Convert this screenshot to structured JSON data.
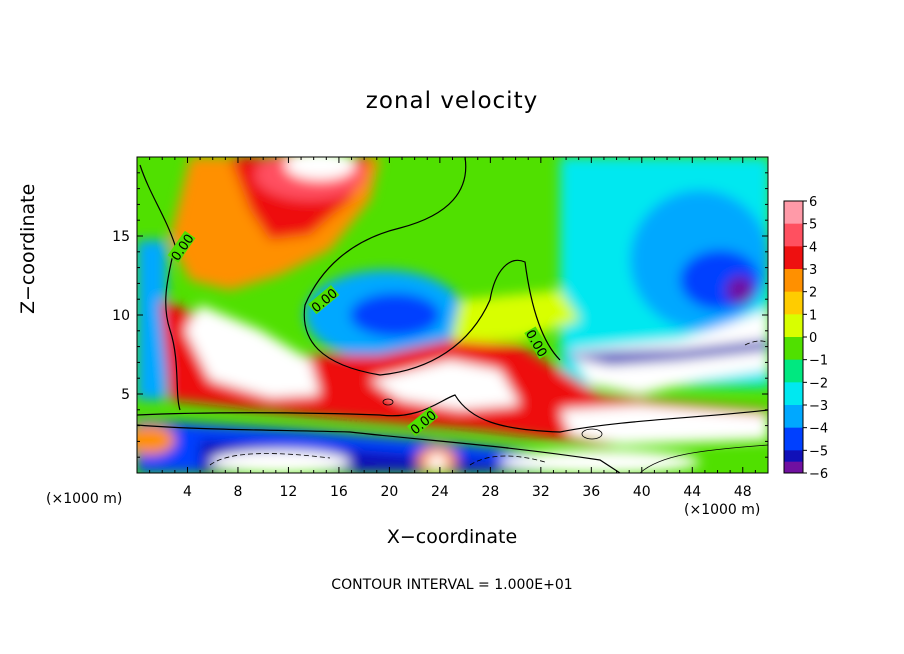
{
  "chart_data": {
    "type": "heatmap",
    "title": "zonal velocity",
    "xlabel": "X−coordinate",
    "ylabel": "Z−coordinate",
    "x_unit_left": "(×1000 m)",
    "x_unit_right": "(×1000 m)",
    "footnote": "CONTOUR INTERVAL = 1.000E+01",
    "xlim": [
      0,
      50
    ],
    "ylim": [
      0,
      20
    ],
    "x_ticks": [
      4,
      8,
      12,
      16,
      20,
      24,
      28,
      32,
      36,
      40,
      44,
      48
    ],
    "y_ticks": [
      5,
      10,
      15
    ],
    "colorbar": {
      "range": [
        -6,
        6
      ],
      "tick_labels": [
        "6",
        "5",
        "4",
        "3",
        "2",
        "1",
        "0",
        "−1",
        "−2",
        "−3",
        "−4",
        "−5",
        "−6"
      ]
    },
    "contour_labels": [
      "0.00",
      "0.00",
      "0.00",
      "0.00"
    ],
    "colors": {
      "v6": "#ff9aa8",
      "v5": "#ff5060",
      "v4": "#ee1010",
      "v3": "#ff9000",
      "v2": "#ffcc00",
      "v1": "#d8ff00",
      "v0": "#50e000",
      "vm1": "#00e880",
      "vm2": "#00e8f0",
      "vm3": "#00a8ff",
      "vm4": "#0040ff",
      "vm5": "#1010b8",
      "vm6": "#7010a0"
    }
  }
}
